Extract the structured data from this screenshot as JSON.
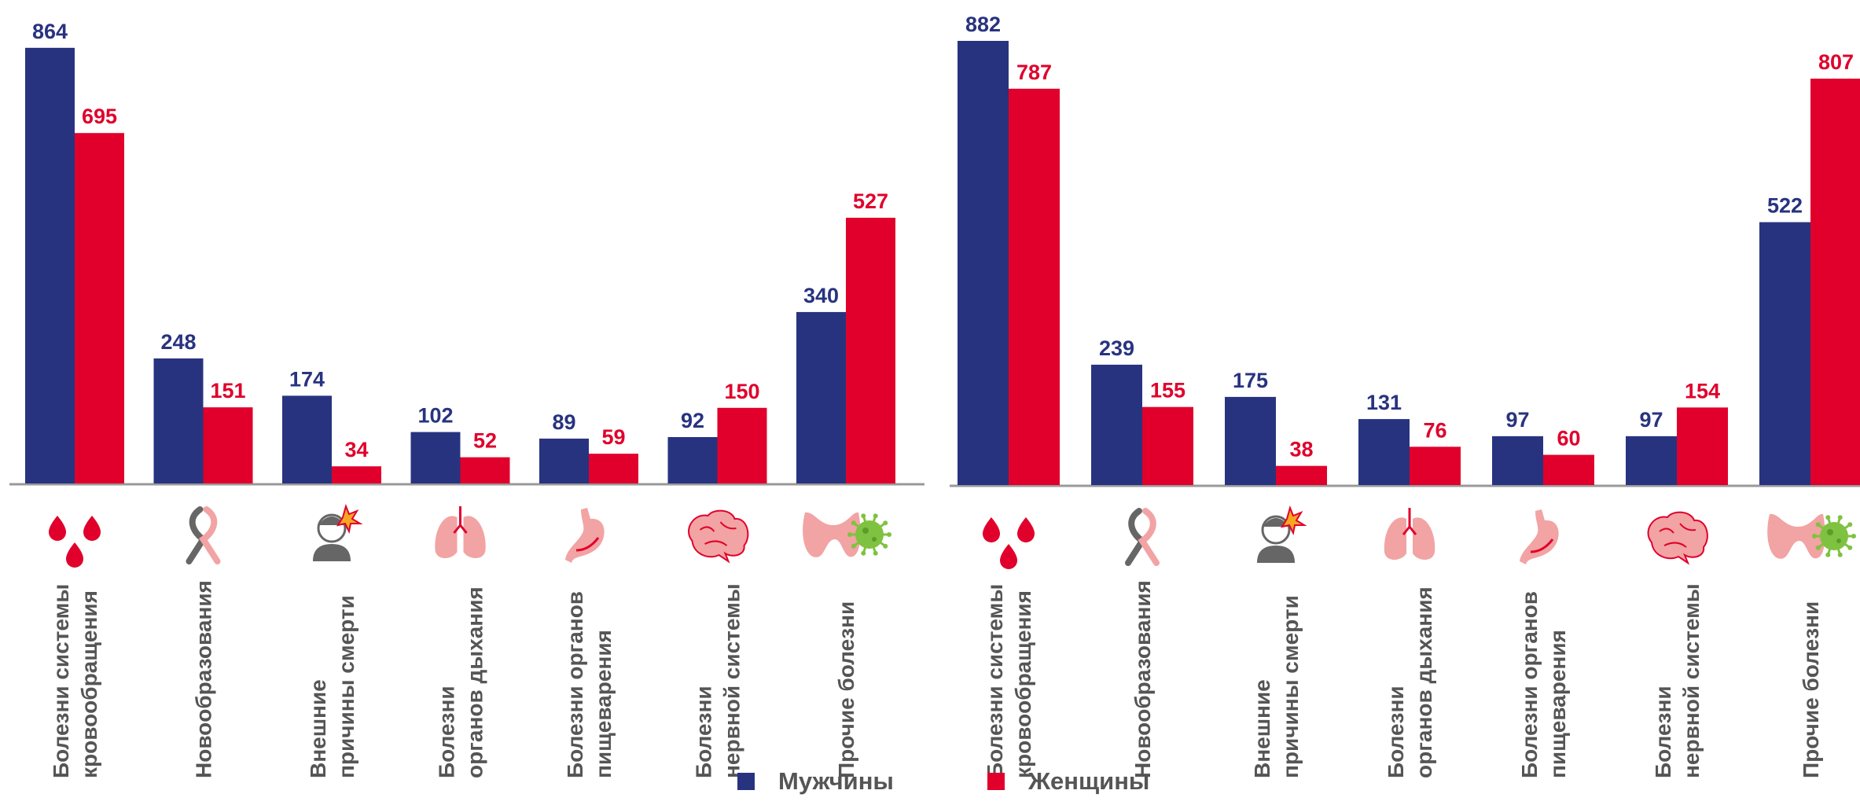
{
  "colors": {
    "men": "#283380",
    "women": "#e0002b",
    "axis": "#999999",
    "text": "#555555",
    "icon": "#f2a3a3"
  },
  "legend": {
    "men": "Мужчины",
    "women": "Женщины"
  },
  "chart_data": [
    {
      "type": "bar",
      "categories": [
        [
          "Болезни системы",
          "кровообращения"
        ],
        [
          "Новообразования"
        ],
        [
          "Внешние",
          "причины смерти"
        ],
        [
          "Болезни",
          "органов дыхания"
        ],
        [
          "Болезни органов",
          "пищеварения"
        ],
        [
          "Болезни",
          "нервной системы"
        ],
        [
          "Прочие болезни"
        ]
      ],
      "icons": [
        "blood-drops-icon",
        "cancer-ribbon-icon",
        "injured-person-icon",
        "lungs-icon",
        "stomach-icon",
        "brain-icon",
        "thyroid-virus-icon"
      ],
      "series": [
        {
          "name": "Мужчины",
          "values": [
            864,
            248,
            174,
            102,
            89,
            92,
            340
          ]
        },
        {
          "name": "Женщины",
          "values": [
            695,
            151,
            34,
            52,
            59,
            150,
            527
          ]
        }
      ],
      "ylim": [
        0,
        900
      ],
      "grid": false,
      "legend": "bottom"
    },
    {
      "type": "bar",
      "categories": [
        [
          "Болезни системы",
          "кровообращения"
        ],
        [
          "Новообразования"
        ],
        [
          "Внешние",
          "причины смерти"
        ],
        [
          "Болезни",
          "органов дыхания"
        ],
        [
          "Болезни органов",
          "пищеварения"
        ],
        [
          "Болезни",
          "нервной системы"
        ],
        [
          "Прочие болезни"
        ]
      ],
      "icons": [
        "blood-drops-icon",
        "cancer-ribbon-icon",
        "injured-person-icon",
        "lungs-icon",
        "stomach-icon",
        "brain-icon",
        "thyroid-virus-icon"
      ],
      "series": [
        {
          "name": "Мужчины",
          "values": [
            882,
            239,
            175,
            131,
            97,
            97,
            522
          ]
        },
        {
          "name": "Женщины",
          "values": [
            787,
            155,
            38,
            76,
            60,
            154,
            807
          ]
        }
      ],
      "ylim": [
        0,
        900
      ],
      "grid": false,
      "legend": "bottom"
    }
  ]
}
